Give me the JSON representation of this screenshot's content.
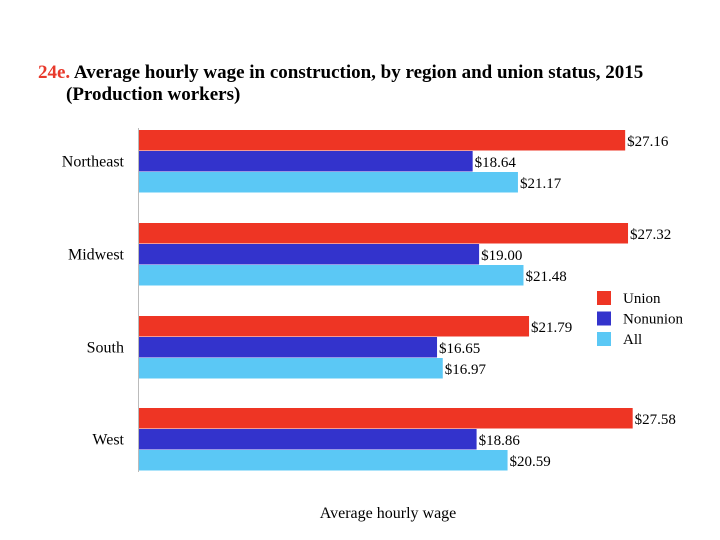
{
  "title": {
    "number": "24e.",
    "main": "Average hourly wage in construction, by region and union status, 2015",
    "sub": "(Production workers)"
  },
  "chart_data": {
    "type": "bar",
    "orientation": "horizontal",
    "categories": [
      "Northeast",
      "Midwest",
      "South",
      "West"
    ],
    "series": [
      {
        "name": "Union",
        "color": "#ee3524",
        "values": [
          27.16,
          27.32,
          21.79,
          27.58
        ],
        "labels": [
          "$27.16",
          "$27.32",
          "$21.79",
          "$27.58"
        ]
      },
      {
        "name": "Nonunion",
        "color": "#3333cc",
        "values": [
          18.64,
          19.0,
          16.65,
          18.86
        ],
        "labels": [
          "$18.64",
          "$19.00",
          "$16.65",
          "$18.86"
        ]
      },
      {
        "name": "All",
        "color": "#5bc8f5",
        "values": [
          21.17,
          21.48,
          16.97,
          20.59
        ],
        "labels": [
          "$21.17",
          "$21.48",
          "$16.97",
          "$20.59"
        ]
      }
    ],
    "xlabel": "Average hourly wage",
    "xlim": [
      0,
      30
    ],
    "grid": false,
    "legend_position": "right"
  }
}
